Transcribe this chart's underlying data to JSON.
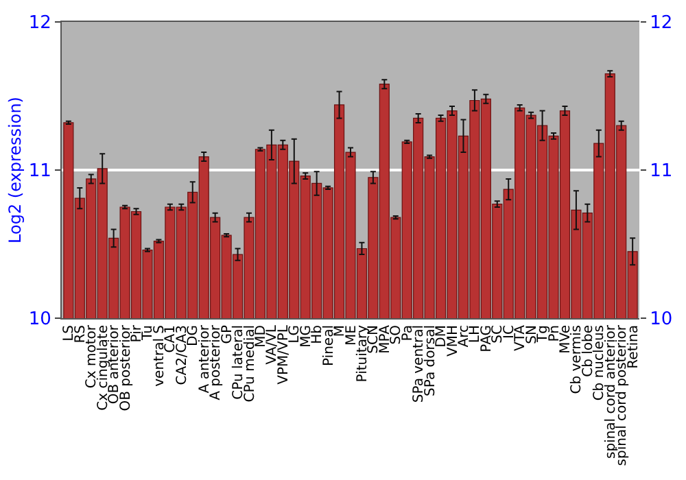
{
  "chart_data": {
    "type": "bar",
    "ylabel": "Log2 (expression)",
    "categories": [
      "LS",
      "RS",
      "Cx motor",
      "Cx cingulate",
      "OB anterior",
      "OB posterior",
      "Pir",
      "Tu",
      "ventral S",
      "CA1",
      "CA2/CA3",
      "DG",
      "A anterior",
      "A posterior",
      "GP",
      "CPu lateral",
      "CPu medial",
      "MD",
      "VA/VL",
      "VPM/VPL",
      "LG",
      "MG",
      "Hb",
      "Pineal",
      "M",
      "ME",
      "Pituitary",
      "SCN",
      "MPA",
      "SO",
      "Pa",
      "SPa ventral",
      "SPa dorsal",
      "DM",
      "VMH",
      "Arc",
      "LH",
      "PAG",
      "SC",
      "IC",
      "VTA",
      "SN",
      "Tg",
      "Pn",
      "MVe",
      "Cb vermis",
      "Cb lobe",
      "Cb nucleus",
      "spinal cord anterior",
      "spinal cord posterior",
      "Retina"
    ],
    "values": [
      11.32,
      10.81,
      10.94,
      11.01,
      10.54,
      10.75,
      10.72,
      10.46,
      10.52,
      10.75,
      10.75,
      10.85,
      11.09,
      10.68,
      10.56,
      10.43,
      10.68,
      11.14,
      11.17,
      11.17,
      11.06,
      10.96,
      10.91,
      10.88,
      11.44,
      11.12,
      10.47,
      10.95,
      11.58,
      10.68,
      11.19,
      11.35,
      11.09,
      11.35,
      11.4,
      11.23,
      11.47,
      11.48,
      10.77,
      10.87,
      11.42,
      11.37,
      11.3,
      11.23,
      11.4,
      10.73,
      10.71,
      11.18,
      11.65,
      11.3,
      10.45
    ],
    "errors": [
      0.01,
      0.07,
      0.03,
      0.1,
      0.06,
      0.01,
      0.02,
      0.01,
      0.01,
      0.02,
      0.02,
      0.07,
      0.03,
      0.03,
      0.01,
      0.04,
      0.03,
      0.01,
      0.1,
      0.03,
      0.15,
      0.02,
      0.08,
      0.01,
      0.09,
      0.03,
      0.04,
      0.04,
      0.03,
      0.01,
      0.01,
      0.03,
      0.01,
      0.02,
      0.03,
      0.11,
      0.07,
      0.03,
      0.02,
      0.07,
      0.02,
      0.02,
      0.1,
      0.02,
      0.03,
      0.13,
      0.06,
      0.09,
      0.02,
      0.03,
      0.09
    ],
    "color": "#b83232",
    "ylim": [
      10,
      12
    ],
    "yticks": [
      10,
      11,
      12
    ],
    "y2lim": [
      10,
      12
    ],
    "y2ticks": [
      10,
      11,
      12
    ],
    "grid": "y"
  }
}
